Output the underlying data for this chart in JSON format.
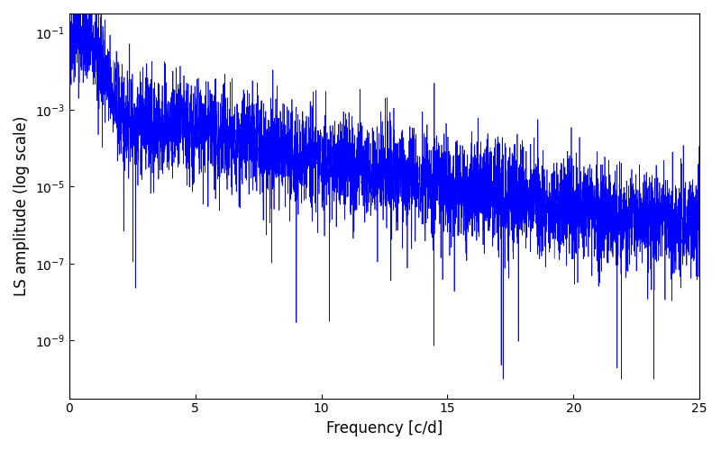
{
  "title": "",
  "xlabel": "Frequency [c/d]",
  "ylabel": "LS amplitude (log scale)",
  "line_color": "#0000ff",
  "xlim": [
    0,
    25
  ],
  "ylim_log": [
    -10.5,
    -0.5
  ],
  "xmin": 0.0,
  "xmax": 25.0,
  "n_points": 5000,
  "seed": 42,
  "figsize": [
    8.0,
    5.0
  ],
  "dpi": 100
}
